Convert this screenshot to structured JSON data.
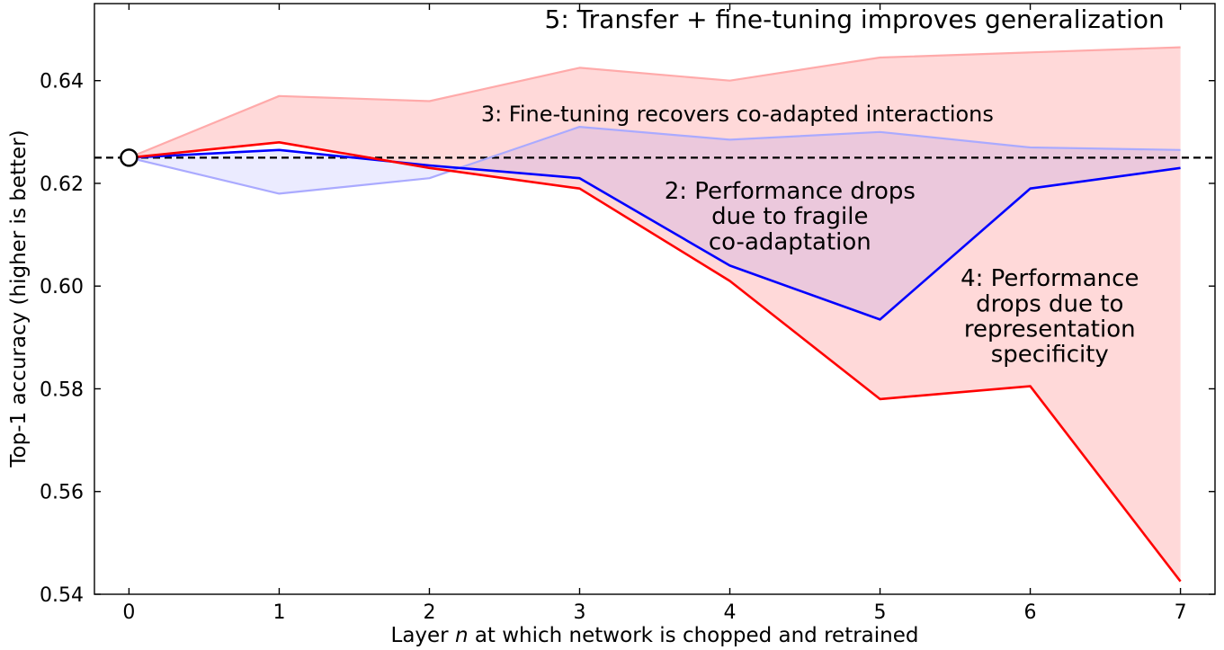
{
  "figure": {
    "background": "#ffffff"
  },
  "chart_data": {
    "type": "line",
    "title": "",
    "xlabel_plain": "Layer n at which network is chopped and retrained",
    "xlabel_parts": [
      {
        "text": "Layer ",
        "italic": false
      },
      {
        "text": "n",
        "italic": true
      },
      {
        "text": " at which network is chopped and retrained",
        "italic": false
      }
    ],
    "ylabel": "Top-1 accuracy (higher is better)",
    "x": [
      0,
      1,
      2,
      3,
      4,
      5,
      6,
      7
    ],
    "xlim": [
      -0.23,
      7.23
    ],
    "ylim": [
      0.54,
      0.655
    ],
    "xticks": [
      "0",
      "1",
      "2",
      "3",
      "4",
      "5",
      "6",
      "7"
    ],
    "yticks": [
      {
        "value": 0.54,
        "label": "0.54"
      },
      {
        "value": 0.56,
        "label": "0.56"
      },
      {
        "value": 0.58,
        "label": "0.58"
      },
      {
        "value": 0.6,
        "label": "0.60"
      },
      {
        "value": 0.62,
        "label": "0.62"
      },
      {
        "value": 0.64,
        "label": "0.64"
      }
    ],
    "grid": false,
    "legend": false,
    "baseline": {
      "value": 0.625,
      "color": "#000000",
      "style": "dashed",
      "marker": {
        "x": 0,
        "y": 0.625,
        "shape": "circle",
        "fill": "#ffffff",
        "edge": "#000000"
      }
    },
    "series": [
      {
        "name": "5-transfer-finetune-AnB+",
        "color": "#ffaaaa",
        "width": 2.2,
        "values": [
          0.625,
          0.637,
          0.636,
          0.6425,
          0.64,
          0.6445,
          0.6455,
          0.6465
        ]
      },
      {
        "name": "3-finetune-recovers-BnB+",
        "color": "#aaaaff",
        "width": 2.2,
        "values": [
          0.625,
          0.618,
          0.621,
          0.631,
          0.6285,
          0.63,
          0.627,
          0.6265
        ]
      },
      {
        "name": "2-fragile-coadaptation-BnB",
        "color": "#0000ff",
        "width": 2.6,
        "values": [
          0.625,
          0.6265,
          0.6235,
          0.621,
          0.604,
          0.5935,
          0.619,
          0.623
        ]
      },
      {
        "name": "4-representation-specificity-AnB",
        "color": "#ff0000",
        "width": 2.6,
        "values": [
          0.625,
          0.628,
          0.623,
          0.619,
          0.601,
          0.578,
          0.5805,
          0.5425
        ]
      }
    ],
    "fills": [
      {
        "upper": "5-transfer-finetune-AnB+",
        "lower": "4-representation-specificity-AnB",
        "color": "#ff0000",
        "opacity": 0.15
      },
      {
        "upper": "3-finetune-recovers-BnB+",
        "lower": "2-fragile-coadaptation-BnB",
        "color": "#0000ff",
        "opacity": 0.08
      }
    ],
    "annotations": [
      {
        "x": 4.83,
        "y": 0.6503,
        "size": 28,
        "line_spacing": 1.08,
        "lines": [
          "5: Transfer + fine-tuning improves generalization"
        ]
      },
      {
        "x": 4.05,
        "y": 0.6321,
        "size": 24,
        "line_spacing": 1.08,
        "lines": [
          "3: Fine-tuning recovers co-adapted interactions"
        ]
      },
      {
        "x": 4.4,
        "y": 0.617,
        "size": 26,
        "line_spacing": 1.08,
        "lines": [
          "2: Performance drops",
          "due to fragile",
          "co-adaptation"
        ]
      },
      {
        "x": 6.13,
        "y": 0.6,
        "size": 26,
        "line_spacing": 1.08,
        "lines": [
          "4: Performance",
          "drops due to",
          "representation",
          "specificity"
        ]
      }
    ]
  }
}
